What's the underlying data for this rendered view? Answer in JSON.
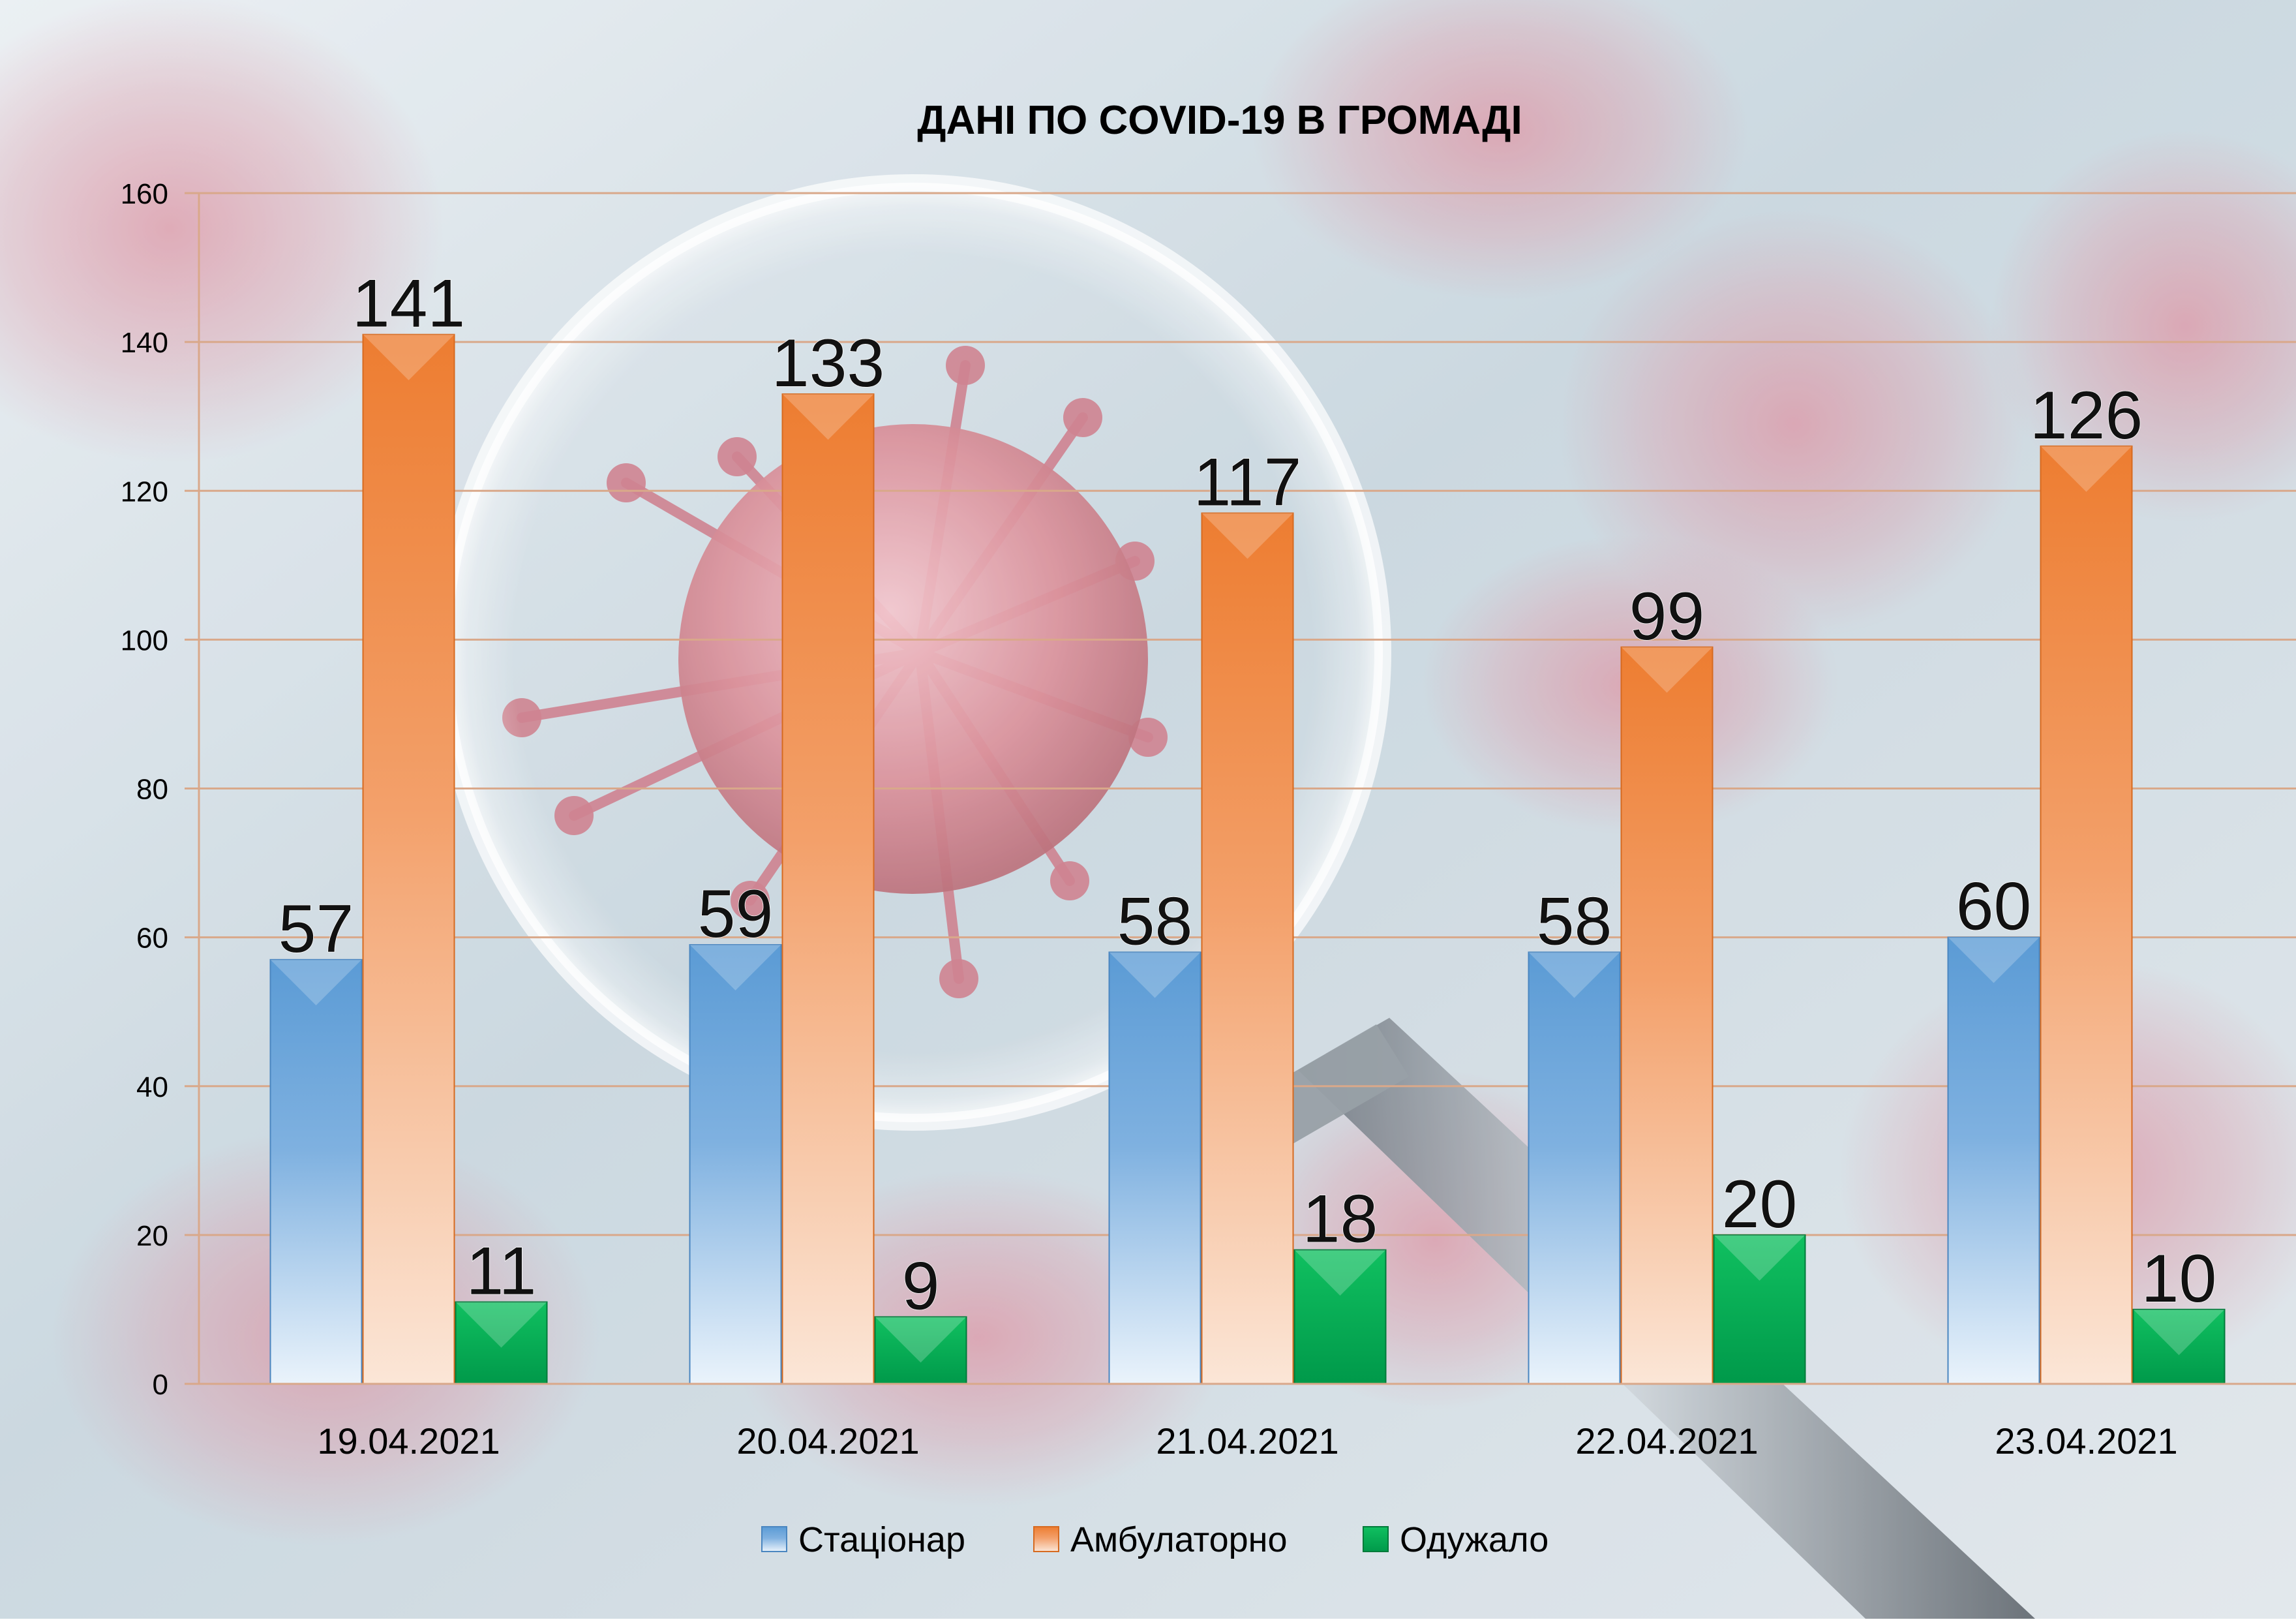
{
  "chart_data": {
    "type": "bar",
    "title": "ДАНІ ПО COVID-19 В ГРОМАДІ",
    "xlabel": "",
    "ylabel": "",
    "categories": [
      "19.04.2021",
      "20.04.2021",
      "21.04.2021",
      "22.04.2021",
      "23.04.2021"
    ],
    "series": [
      {
        "name": "Стаціонар",
        "values": [
          57,
          59,
          58,
          58,
          60
        ],
        "color": "#5B9BD5"
      },
      {
        "name": "Амбулаторно",
        "values": [
          141,
          133,
          117,
          99,
          126
        ],
        "color": "#ED7D31"
      },
      {
        "name": "Одужало",
        "values": [
          11,
          9,
          18,
          20,
          10
        ],
        "color": "#00B050"
      }
    ],
    "ylim": [
      0,
      160
    ],
    "yticks": [
      0,
      20,
      40,
      60,
      80,
      100,
      120,
      140,
      160
    ],
    "grid": true,
    "legend": "bottom",
    "background": "coronavirus-magnifier-photo"
  }
}
